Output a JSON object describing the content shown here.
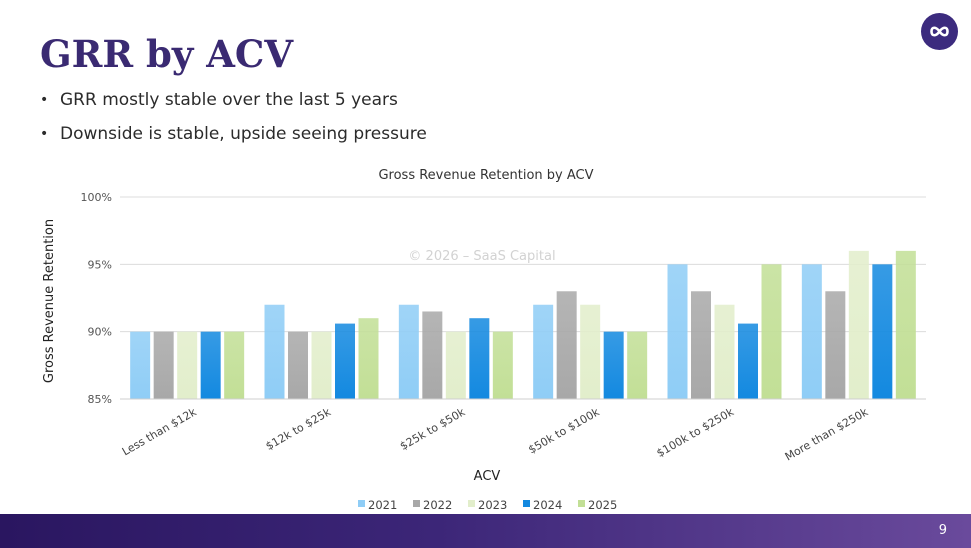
{
  "slide": {
    "title": "GRR by ACV",
    "bullets": [
      "GRR mostly stable over the last 5 years",
      "Downside is stable, upside seeing pressure"
    ],
    "page_number": "9",
    "logo_icon": "infinity-logo-icon"
  },
  "chart_data": {
    "type": "bar",
    "title": "Gross Revenue Retention by ACV",
    "xlabel": "ACV",
    "ylabel": "Gross Revenue Retention",
    "watermark": "© 2026 – SaaS Capital",
    "categories": [
      "Less than $12k",
      "$12k to $25k",
      "$25k to $50k",
      "$50k to $100k",
      "$100k to $250k",
      "More than $250k"
    ],
    "yticks": [
      "85%",
      "90%",
      "95%",
      "100%"
    ],
    "ylim": [
      85,
      100
    ],
    "grid": true,
    "legend_position": "bottom",
    "series": [
      {
        "name": "2021",
        "color": "#8fcdf6",
        "values": [
          90,
          92,
          92,
          92,
          95,
          95
        ]
      },
      {
        "name": "2022",
        "color": "#a8a8a8",
        "values": [
          90,
          90,
          91.5,
          93,
          93,
          93
        ]
      },
      {
        "name": "2023",
        "color": "#e2eecb",
        "values": [
          90,
          90,
          90,
          92,
          92,
          96
        ]
      },
      {
        "name": "2024",
        "color": "#1389e0",
        "values": [
          90,
          90.6,
          91,
          90,
          90.6,
          95
        ]
      },
      {
        "name": "2025",
        "color": "#c2df96",
        "values": [
          90,
          91,
          90,
          90,
          95,
          96
        ]
      }
    ]
  }
}
